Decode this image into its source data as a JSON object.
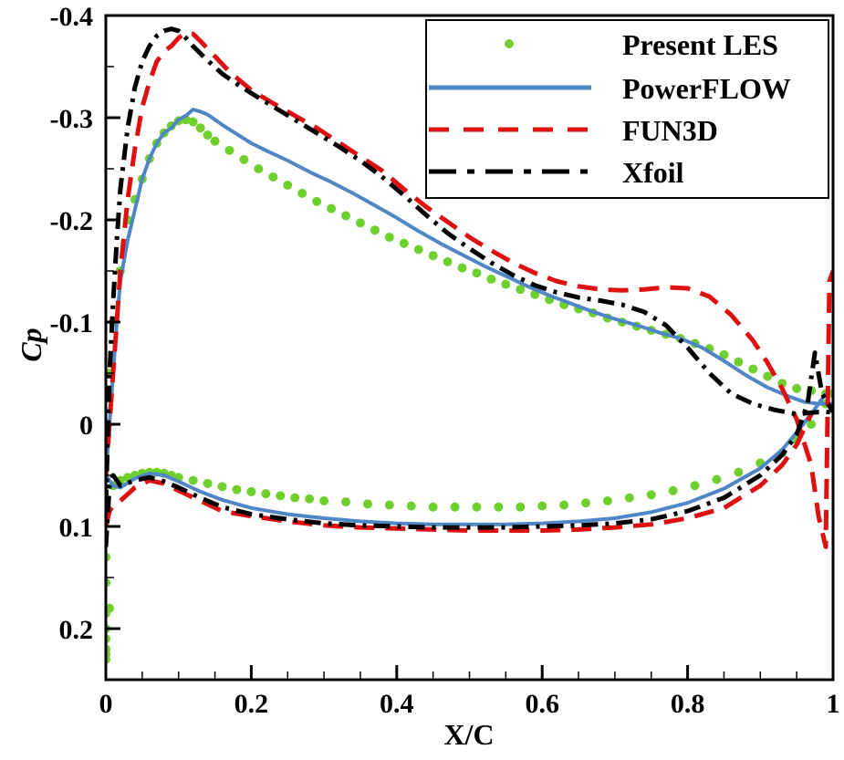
{
  "chart_data": {
    "type": "line",
    "title": "",
    "xlabel": "X/C",
    "ylabel": "Cp",
    "xlim": [
      0,
      1
    ],
    "ylim": [
      -0.4,
      0.25
    ],
    "y_inverted": true,
    "grid": false,
    "legend_position": "top-right",
    "xticks": [
      0,
      0.2,
      0.4,
      0.6,
      0.8,
      1
    ],
    "xtick_labels": [
      "0",
      "0.2",
      "0.4",
      "0.6",
      "0.8",
      "1"
    ],
    "x_minor_step": 0.05,
    "yticks": [
      -0.4,
      -0.3,
      -0.2,
      -0.1,
      0,
      0.1,
      0.2
    ],
    "ytick_labels": [
      "-0.4",
      "-0.3",
      "-0.2",
      "-0.1",
      "0",
      "0.1",
      "0.2"
    ],
    "y_minor_step": 0.05,
    "series": [
      {
        "name": "Present LES",
        "style": "dots",
        "color": "#6fcf2f",
        "suction_side": {
          "x": [
            0.0,
            0.005,
            0.01,
            0.02,
            0.03,
            0.04,
            0.05,
            0.06,
            0.07,
            0.08,
            0.09,
            0.1,
            0.11,
            0.12,
            0.13,
            0.14,
            0.15,
            0.17,
            0.19,
            0.21,
            0.23,
            0.25,
            0.27,
            0.29,
            0.31,
            0.33,
            0.35,
            0.37,
            0.39,
            0.41,
            0.43,
            0.45,
            0.47,
            0.49,
            0.51,
            0.53,
            0.55,
            0.57,
            0.59,
            0.61,
            0.63,
            0.65,
            0.67,
            0.69,
            0.71,
            0.73,
            0.75,
            0.77,
            0.79,
            0.81,
            0.83,
            0.85,
            0.87,
            0.89,
            0.91,
            0.93,
            0.95,
            0.97,
            0.99,
            1.0
          ],
          "y": [
            0.0,
            -0.05,
            -0.1,
            -0.15,
            -0.2,
            -0.22,
            -0.24,
            -0.26,
            -0.275,
            -0.285,
            -0.292,
            -0.297,
            -0.298,
            -0.296,
            -0.29,
            -0.283,
            -0.277,
            -0.268,
            -0.259,
            -0.25,
            -0.242,
            -0.234,
            -0.226,
            -0.218,
            -0.211,
            -0.204,
            -0.197,
            -0.19,
            -0.183,
            -0.177,
            -0.171,
            -0.165,
            -0.159,
            -0.153,
            -0.148,
            -0.142,
            -0.137,
            -0.132,
            -0.127,
            -0.122,
            -0.117,
            -0.113,
            -0.109,
            -0.104,
            -0.1,
            -0.096,
            -0.092,
            -0.088,
            -0.084,
            -0.079,
            -0.074,
            -0.068,
            -0.061,
            -0.054,
            -0.047,
            -0.04,
            -0.035,
            -0.033,
            -0.03,
            -0.03
          ]
        },
        "pressure_side": {
          "x": [
            0.0,
            0.005,
            0.01,
            0.02,
            0.03,
            0.04,
            0.05,
            0.06,
            0.07,
            0.08,
            0.09,
            0.1,
            0.12,
            0.14,
            0.16,
            0.18,
            0.2,
            0.22,
            0.24,
            0.26,
            0.28,
            0.3,
            0.33,
            0.36,
            0.39,
            0.42,
            0.45,
            0.48,
            0.51,
            0.54,
            0.57,
            0.6,
            0.63,
            0.66,
            0.69,
            0.72,
            0.75,
            0.78,
            0.81,
            0.84,
            0.87,
            0.9,
            0.93,
            0.95,
            0.97,
            0.99
          ],
          "y": [
            0.23,
            0.18,
            0.06,
            0.055,
            0.052,
            0.05,
            0.048,
            0.047,
            0.047,
            0.048,
            0.05,
            0.052,
            0.055,
            0.058,
            0.061,
            0.064,
            0.066,
            0.068,
            0.07,
            0.072,
            0.073,
            0.075,
            0.076,
            0.078,
            0.079,
            0.08,
            0.081,
            0.081,
            0.081,
            0.081,
            0.081,
            0.08,
            0.079,
            0.077,
            0.075,
            0.072,
            0.069,
            0.065,
            0.06,
            0.054,
            0.047,
            0.038,
            0.028,
            0.015,
            0.0,
            -0.02
          ]
        },
        "leading_edge_dots": {
          "x": [
            0.0,
            0.0,
            0.0,
            0.0,
            0.0,
            0.0,
            0.0
          ],
          "y": [
            0.13,
            0.155,
            0.185,
            0.2,
            0.21,
            0.22,
            0.225
          ]
        }
      },
      {
        "name": "PowerFLOW",
        "style": "solid",
        "color": "#4f86c6",
        "suction_side": {
          "x": [
            0.0,
            0.005,
            0.01,
            0.015,
            0.02,
            0.03,
            0.04,
            0.05,
            0.06,
            0.07,
            0.08,
            0.09,
            0.1,
            0.11,
            0.12,
            0.13,
            0.14,
            0.16,
            0.18,
            0.2,
            0.22,
            0.25,
            0.28,
            0.31,
            0.34,
            0.37,
            0.4,
            0.43,
            0.46,
            0.49,
            0.52,
            0.55,
            0.58,
            0.61,
            0.64,
            0.67,
            0.7,
            0.73,
            0.76,
            0.79,
            0.82,
            0.85,
            0.88,
            0.91,
            0.94,
            0.96,
            0.98,
            1.0
          ],
          "y": [
            0.05,
            0.0,
            -0.05,
            -0.1,
            -0.14,
            -0.18,
            -0.21,
            -0.24,
            -0.26,
            -0.275,
            -0.285,
            -0.29,
            -0.298,
            -0.302,
            -0.308,
            -0.306,
            -0.303,
            -0.293,
            -0.284,
            -0.275,
            -0.268,
            -0.258,
            -0.247,
            -0.237,
            -0.226,
            -0.214,
            -0.202,
            -0.189,
            -0.177,
            -0.166,
            -0.155,
            -0.145,
            -0.135,
            -0.126,
            -0.118,
            -0.11,
            -0.103,
            -0.097,
            -0.09,
            -0.084,
            -0.075,
            -0.062,
            -0.048,
            -0.036,
            -0.027,
            -0.022,
            -0.02,
            -0.02
          ]
        },
        "pressure_side": {
          "x": [
            0.0,
            0.005,
            0.01,
            0.02,
            0.04,
            0.06,
            0.08,
            0.1,
            0.13,
            0.16,
            0.2,
            0.25,
            0.3,
            0.35,
            0.4,
            0.45,
            0.5,
            0.55,
            0.6,
            0.65,
            0.7,
            0.75,
            0.8,
            0.85,
            0.9,
            0.93,
            0.95,
            0.97,
            0.99
          ],
          "y": [
            0.05,
            0.055,
            0.06,
            0.062,
            0.053,
            0.048,
            0.05,
            0.056,
            0.066,
            0.074,
            0.082,
            0.088,
            0.092,
            0.095,
            0.097,
            0.098,
            0.098,
            0.098,
            0.097,
            0.095,
            0.092,
            0.086,
            0.077,
            0.063,
            0.043,
            0.025,
            0.008,
            -0.01,
            -0.03
          ]
        }
      },
      {
        "name": "FUN3D",
        "style": "dashed",
        "color": "#dd1111",
        "suction_side": {
          "x": [
            0.0,
            0.005,
            0.01,
            0.015,
            0.02,
            0.03,
            0.04,
            0.05,
            0.06,
            0.07,
            0.08,
            0.09,
            0.1,
            0.11,
            0.12,
            0.13,
            0.15,
            0.17,
            0.2,
            0.23,
            0.26,
            0.29,
            0.32,
            0.35,
            0.38,
            0.41,
            0.44,
            0.47,
            0.5,
            0.53,
            0.56,
            0.59,
            0.62,
            0.65,
            0.68,
            0.71,
            0.74,
            0.77,
            0.8,
            0.83,
            0.86,
            0.89,
            0.91,
            0.93,
            0.95,
            0.97,
            0.98,
            0.99,
            0.995,
            1.0
          ],
          "y": [
            0.05,
            0.0,
            -0.05,
            -0.1,
            -0.15,
            -0.22,
            -0.27,
            -0.31,
            -0.335,
            -0.355,
            -0.365,
            -0.37,
            -0.378,
            -0.383,
            -0.382,
            -0.375,
            -0.36,
            -0.345,
            -0.327,
            -0.314,
            -0.302,
            -0.29,
            -0.276,
            -0.262,
            -0.248,
            -0.23,
            -0.213,
            -0.198,
            -0.183,
            -0.17,
            -0.158,
            -0.148,
            -0.14,
            -0.135,
            -0.132,
            -0.131,
            -0.132,
            -0.134,
            -0.133,
            -0.125,
            -0.107,
            -0.082,
            -0.06,
            -0.035,
            -0.005,
            0.04,
            0.09,
            0.12,
            -0.14,
            -0.15
          ]
        },
        "pressure_side": {
          "x": [
            0.0,
            0.005,
            0.01,
            0.02,
            0.04,
            0.06,
            0.08,
            0.1,
            0.13,
            0.16,
            0.2,
            0.25,
            0.3,
            0.35,
            0.4,
            0.45,
            0.5,
            0.55,
            0.6,
            0.65,
            0.7,
            0.75,
            0.8,
            0.85,
            0.9,
            0.93,
            0.95,
            0.97
          ],
          "y": [
            0.1,
            0.085,
            0.08,
            0.075,
            0.062,
            0.055,
            0.058,
            0.065,
            0.075,
            0.085,
            0.09,
            0.095,
            0.099,
            0.101,
            0.102,
            0.103,
            0.104,
            0.104,
            0.104,
            0.103,
            0.101,
            0.098,
            0.092,
            0.082,
            0.06,
            0.04,
            0.02,
            -0.01
          ]
        }
      },
      {
        "name": "Xfoil",
        "style": "dashdot",
        "color": "#000000",
        "suction_side": {
          "x": [
            0.0,
            0.005,
            0.01,
            0.015,
            0.02,
            0.03,
            0.04,
            0.05,
            0.06,
            0.07,
            0.08,
            0.09,
            0.1,
            0.11,
            0.12,
            0.14,
            0.16,
            0.18,
            0.2,
            0.23,
            0.26,
            0.29,
            0.32,
            0.35,
            0.38,
            0.41,
            0.44,
            0.47,
            0.5,
            0.53,
            0.56,
            0.59,
            0.62,
            0.65,
            0.68,
            0.71,
            0.74,
            0.77,
            0.8,
            0.83,
            0.86,
            0.89,
            0.92,
            0.95,
            0.98,
            1.0
          ],
          "y": [
            0.08,
            -0.05,
            -0.12,
            -0.18,
            -0.23,
            -0.29,
            -0.33,
            -0.355,
            -0.37,
            -0.38,
            -0.385,
            -0.387,
            -0.385,
            -0.378,
            -0.37,
            -0.356,
            -0.343,
            -0.333,
            -0.324,
            -0.311,
            -0.298,
            -0.285,
            -0.272,
            -0.258,
            -0.242,
            -0.224,
            -0.205,
            -0.187,
            -0.172,
            -0.158,
            -0.146,
            -0.136,
            -0.129,
            -0.124,
            -0.121,
            -0.117,
            -0.11,
            -0.097,
            -0.075,
            -0.05,
            -0.03,
            -0.02,
            -0.014,
            -0.01,
            -0.012,
            -0.012
          ]
        },
        "pressure_side": {
          "x": [
            0.0,
            0.005,
            0.01,
            0.02,
            0.04,
            0.06,
            0.08,
            0.1,
            0.13,
            0.16,
            0.2,
            0.25,
            0.3,
            0.35,
            0.4,
            0.45,
            0.5,
            0.55,
            0.6,
            0.65,
            0.7,
            0.75,
            0.8,
            0.85,
            0.9,
            0.93,
            0.95,
            0.965,
            0.975,
            0.985,
            1.0
          ],
          "y": [
            0.12,
            0.06,
            0.05,
            0.06,
            0.055,
            0.052,
            0.056,
            0.062,
            0.072,
            0.081,
            0.088,
            0.093,
            0.097,
            0.099,
            0.1,
            0.101,
            0.101,
            0.101,
            0.1,
            0.099,
            0.097,
            0.093,
            0.085,
            0.072,
            0.05,
            0.03,
            0.01,
            -0.02,
            -0.07,
            -0.03,
            -0.012
          ]
        }
      }
    ]
  }
}
